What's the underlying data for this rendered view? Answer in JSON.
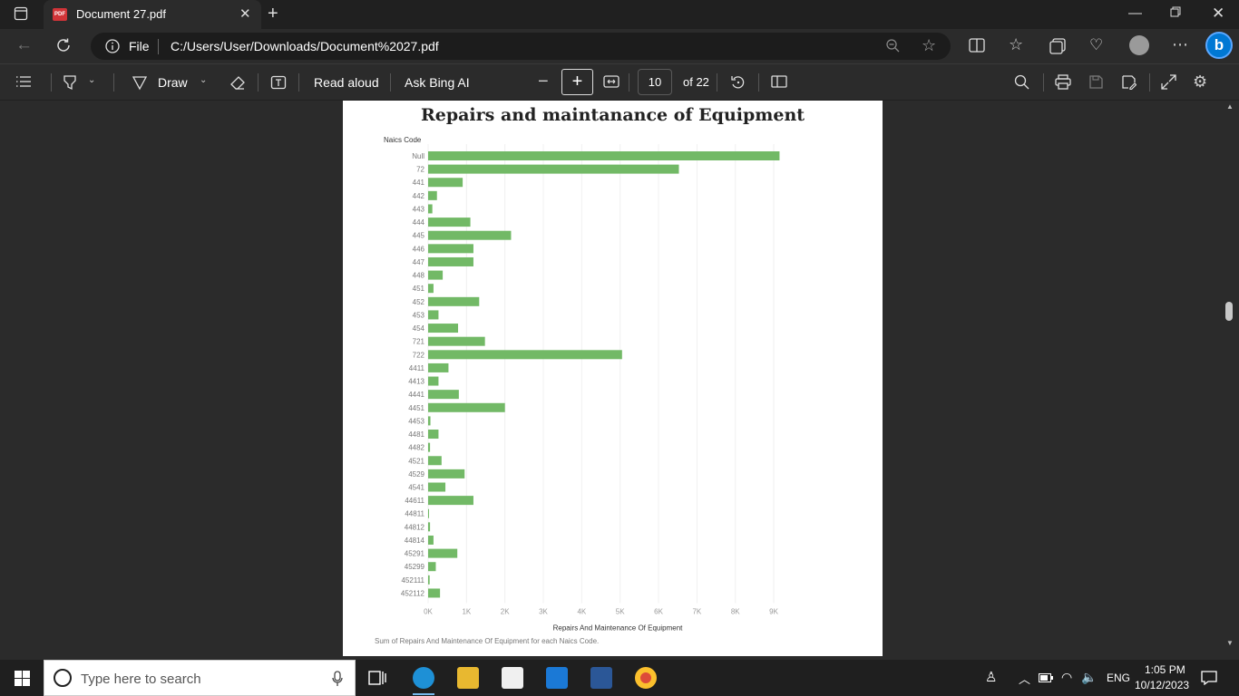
{
  "browser": {
    "tab_title": "Document 27.pdf",
    "pdf_badge": "PDF",
    "address_scheme": "File",
    "address_url": "C:/Users/User/Downloads/Document%2027.pdf"
  },
  "pdf_toolbar": {
    "draw_label": "Draw",
    "read_aloud": "Read aloud",
    "ask_bing": "Ask Bing AI",
    "current_page": "10",
    "page_total": "of 22"
  },
  "document": {
    "footer_note": "Sum of Repairs And Maintenance Of Equipment for each Naics Code."
  },
  "chart_data": {
    "type": "bar",
    "orientation": "horizontal",
    "title": "Repairs and maintanance of  Equipment",
    "ylabel": "Naics Code",
    "xlabel": "Repairs And Maintenance Of Equipment",
    "xlim": [
      0,
      9400
    ],
    "xticks": [
      0,
      1000,
      2000,
      3000,
      4000,
      5000,
      6000,
      7000,
      8000,
      9000
    ],
    "xtick_labels": [
      "0K",
      "1K",
      "2K",
      "3K",
      "4K",
      "5K",
      "6K",
      "7K",
      "8K",
      "9K"
    ],
    "bar_color": "#72b966",
    "categories": [
      "Null",
      "72",
      "441",
      "442",
      "443",
      "444",
      "445",
      "446",
      "447",
      "448",
      "451",
      "452",
      "453",
      "454",
      "721",
      "722",
      "4411",
      "4413",
      "4441",
      "4451",
      "4453",
      "4481",
      "4482",
      "4521",
      "4529",
      "4541",
      "44611",
      "44811",
      "44812",
      "44814",
      "45291",
      "45299",
      "452111",
      "452112"
    ],
    "values": [
      9150,
      6530,
      900,
      230,
      110,
      1100,
      2160,
      1180,
      1180,
      380,
      140,
      1330,
      270,
      780,
      1480,
      5050,
      530,
      270,
      800,
      2000,
      60,
      270,
      50,
      350,
      950,
      450,
      1180,
      20,
      50,
      140,
      760,
      200,
      40,
      310
    ]
  },
  "taskbar": {
    "search_placeholder": "Type here to search",
    "language": "ENG",
    "time": "1:05 PM",
    "date": "10/12/2023"
  },
  "colors": {
    "accent": "#0078d4",
    "bar": "#72b966"
  }
}
